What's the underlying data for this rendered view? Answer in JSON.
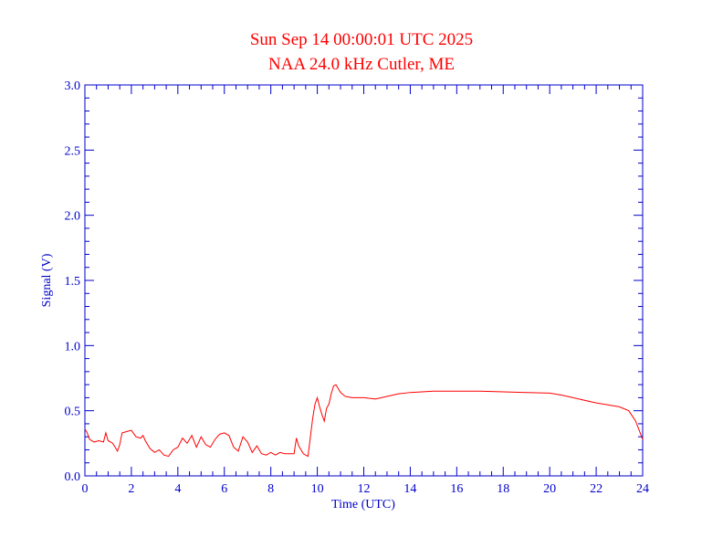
{
  "colors": {
    "axis": "#0000cc",
    "series": "#ff0000",
    "title": "#ff0000",
    "background": "#ffffff"
  },
  "chart_data": {
    "type": "line",
    "title": "Sun Sep 14 00:00:01 UTC 2025",
    "subtitle": "NAA 24.0 kHz Cutler, ME",
    "xlabel": "Time (UTC)",
    "ylabel": "Signal (V)",
    "xlim": [
      0,
      24
    ],
    "ylim": [
      0,
      3.0
    ],
    "x_ticks": [
      "0",
      "2",
      "4",
      "6",
      "8",
      "10",
      "12",
      "14",
      "16",
      "18",
      "20",
      "22",
      "24"
    ],
    "y_ticks": [
      "0.0",
      "0.5",
      "1.0",
      "1.5",
      "2.0",
      "2.5",
      "3.0"
    ],
    "grid": false,
    "series": [
      {
        "x": [
          0.0,
          0.1,
          0.2,
          0.4,
          0.6,
          0.8,
          0.9,
          1.0,
          1.1,
          1.2,
          1.4,
          1.5,
          1.6,
          1.8,
          2.0,
          2.2,
          2.4,
          2.5,
          2.6,
          2.8,
          3.0,
          3.2,
          3.4,
          3.6,
          3.8,
          4.0,
          4.2,
          4.4,
          4.6,
          4.8,
          5.0,
          5.2,
          5.4,
          5.6,
          5.8,
          6.0,
          6.2,
          6.4,
          6.6,
          6.8,
          7.0,
          7.2,
          7.4,
          7.6,
          7.8,
          8.0,
          8.2,
          8.4,
          8.6,
          8.8,
          9.0,
          9.1,
          9.2,
          9.4,
          9.6,
          9.8,
          9.9,
          10.0,
          10.1,
          10.2,
          10.3,
          10.4,
          10.5,
          10.6,
          10.7,
          10.8,
          11.0,
          11.2,
          11.5,
          12.0,
          12.5,
          13.0,
          13.5,
          14.0,
          15.0,
          16.0,
          17.0,
          18.0,
          19.0,
          20.0,
          20.5,
          21.0,
          22.0,
          23.0,
          23.4,
          23.7,
          24.0
        ],
        "y": [
          0.36,
          0.33,
          0.28,
          0.26,
          0.27,
          0.26,
          0.33,
          0.27,
          0.26,
          0.25,
          0.19,
          0.24,
          0.33,
          0.34,
          0.35,
          0.3,
          0.29,
          0.31,
          0.27,
          0.21,
          0.18,
          0.2,
          0.16,
          0.15,
          0.2,
          0.22,
          0.29,
          0.25,
          0.31,
          0.22,
          0.3,
          0.24,
          0.22,
          0.28,
          0.32,
          0.33,
          0.31,
          0.22,
          0.19,
          0.3,
          0.26,
          0.18,
          0.23,
          0.17,
          0.16,
          0.18,
          0.16,
          0.18,
          0.17,
          0.17,
          0.17,
          0.29,
          0.23,
          0.17,
          0.15,
          0.44,
          0.55,
          0.6,
          0.53,
          0.47,
          0.42,
          0.52,
          0.55,
          0.63,
          0.69,
          0.7,
          0.64,
          0.61,
          0.6,
          0.6,
          0.59,
          0.61,
          0.63,
          0.64,
          0.65,
          0.65,
          0.65,
          0.645,
          0.64,
          0.635,
          0.62,
          0.6,
          0.56,
          0.53,
          0.5,
          0.42,
          0.28
        ]
      }
    ]
  }
}
